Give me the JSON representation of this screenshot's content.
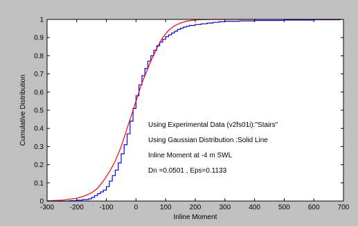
{
  "chart_data": {
    "type": "line",
    "title": "",
    "xlabel": "Inline Moment",
    "ylabel": "Cumulative Distribution",
    "xlim": [
      -300,
      700
    ],
    "ylim": [
      0,
      1
    ],
    "xticks": [
      -300,
      -200,
      -100,
      0,
      100,
      200,
      300,
      400,
      500,
      600,
      700
    ],
    "yticks": [
      0,
      0.1,
      0.2,
      0.3,
      0.4,
      0.5,
      0.6,
      0.7,
      0.8,
      0.9,
      1
    ],
    "xtick_labels": [
      "-300",
      "-200",
      "-100",
      "0",
      "100",
      "200",
      "300",
      "400",
      "500",
      "600",
      "700"
    ],
    "ytick_labels": [
      "0",
      "0.1",
      "0.2",
      "0.3",
      "0.4",
      "0.5",
      "0.6",
      "0.7",
      "0.8",
      "0.9",
      "1"
    ],
    "grid": false,
    "annotations": [
      "Using Experimental Data (v2fs01i):\"Stairs\"",
      "Using Gaussian Distribution :Solid Line",
      "Inline Moment at -4 m SWL",
      "Dn =0.0501 , Eps=0.1133"
    ],
    "series": [
      {
        "style": "stairs",
        "color": "#0000ff",
        "x": [
          -300,
          -250,
          -225,
          -200,
          -180,
          -160,
          -150,
          -140,
          -130,
          -120,
          -110,
          -100,
          -90,
          -80,
          -70,
          -60,
          -50,
          -40,
          -30,
          -20,
          -10,
          0,
          10,
          20,
          30,
          40,
          50,
          60,
          70,
          80,
          90,
          100,
          110,
          120,
          130,
          140,
          150,
          160,
          170,
          180,
          200,
          220,
          240,
          260,
          280,
          300,
          350,
          400,
          500,
          600,
          690
        ],
        "y": [
          0,
          0,
          0.002,
          0.005,
          0.008,
          0.012,
          0.02,
          0.03,
          0.04,
          0.05,
          0.06,
          0.08,
          0.11,
          0.14,
          0.17,
          0.21,
          0.26,
          0.31,
          0.37,
          0.44,
          0.51,
          0.58,
          0.64,
          0.69,
          0.73,
          0.77,
          0.8,
          0.83,
          0.855,
          0.875,
          0.89,
          0.905,
          0.915,
          0.925,
          0.935,
          0.945,
          0.952,
          0.958,
          0.962,
          0.967,
          0.972,
          0.976,
          0.98,
          0.984,
          0.987,
          0.99,
          0.992,
          0.994,
          0.996,
          0.998,
          1
        ]
      },
      {
        "style": "line",
        "color": "#ff0000",
        "x": [
          -300,
          -250,
          -200,
          -175,
          -150,
          -130,
          -110,
          -90,
          -70,
          -50,
          -40,
          -30,
          -20,
          -10,
          0,
          10,
          20,
          30,
          50,
          70,
          90,
          110,
          130,
          150,
          170,
          200,
          230,
          260,
          300,
          400,
          500,
          600,
          690
        ],
        "y": [
          0.001,
          0.005,
          0.015,
          0.027,
          0.045,
          0.07,
          0.11,
          0.16,
          0.22,
          0.3,
          0.35,
          0.4,
          0.45,
          0.5,
          0.55,
          0.6,
          0.65,
          0.69,
          0.77,
          0.84,
          0.9,
          0.94,
          0.965,
          0.98,
          0.99,
          0.997,
          0.999,
          1,
          1,
          1,
          1,
          1,
          1
        ]
      }
    ]
  }
}
